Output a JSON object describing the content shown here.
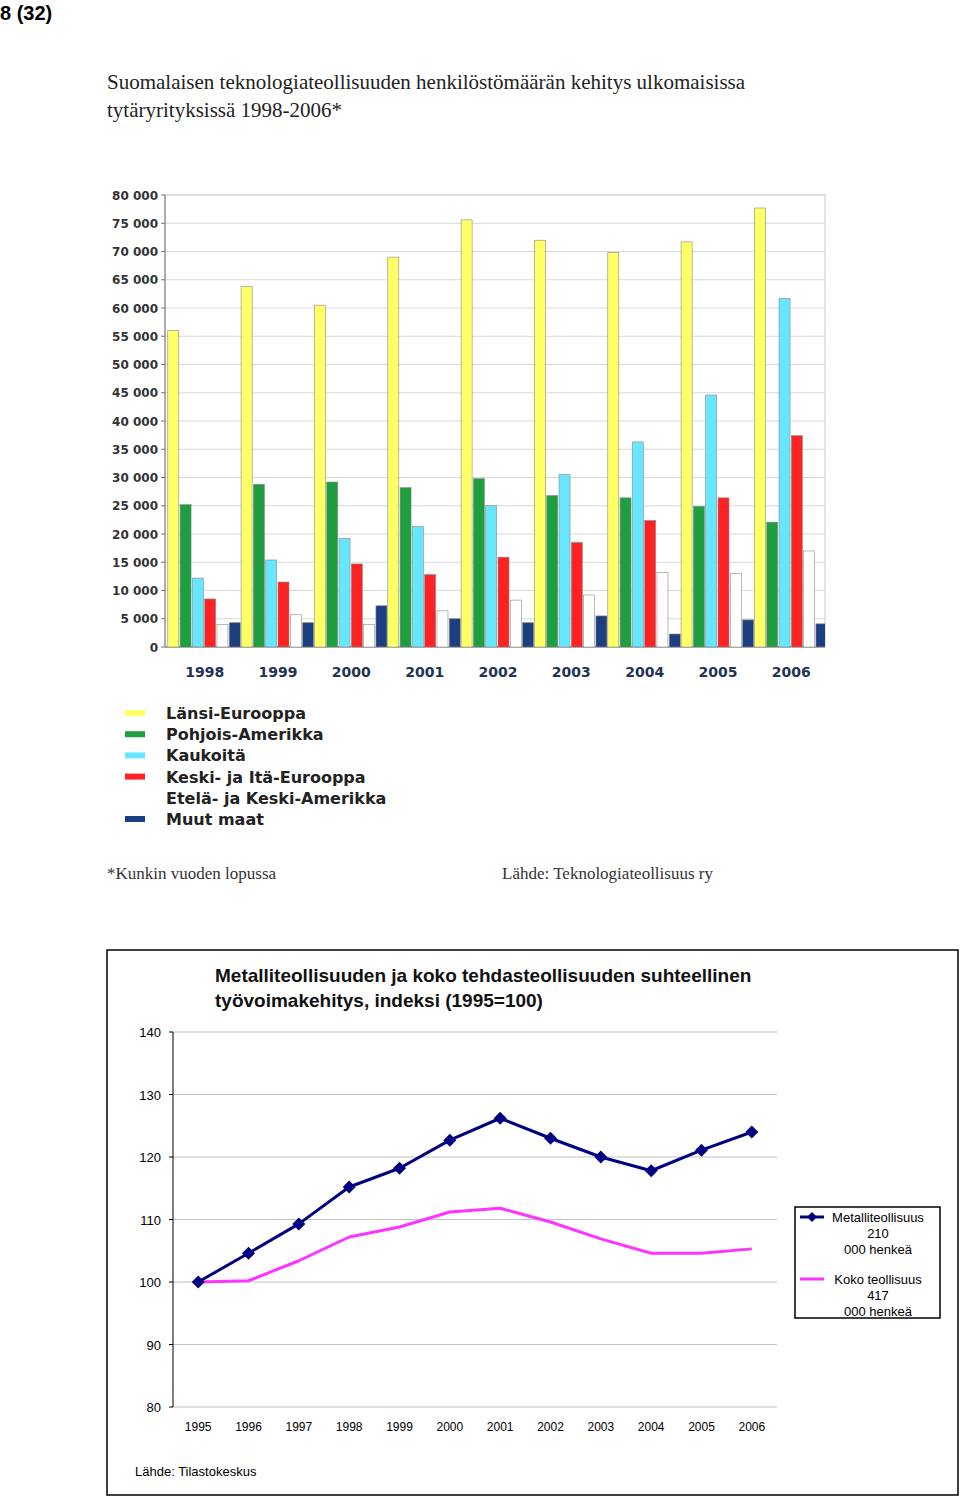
{
  "page": {
    "page_number": "8 (32)"
  },
  "chart_data": [
    {
      "type": "bar",
      "title": "Suomalaisen teknologiateollisuuden henkilöstömäärän kehitys ulkomaisissa tytäryrityksissä 1998-2006*",
      "note": "*Kunkin vuoden lopussa",
      "source": "Lähde: Teknologiateollisuus ry",
      "categories": [
        "1998",
        "1999",
        "2000",
        "2001",
        "2002",
        "2003",
        "2004",
        "2005",
        "2006"
      ],
      "series": [
        {
          "name": "Länsi-Eurooppa",
          "color": "#ffff66",
          "values": [
            56000,
            63800,
            60500,
            69000,
            75600,
            72000,
            69800,
            71700,
            77700
          ]
        },
        {
          "name": "Pohjois-Amerikka",
          "color": "#1e9e3e",
          "values": [
            25200,
            28800,
            29200,
            28200,
            29800,
            26800,
            26400,
            24900,
            22100
          ]
        },
        {
          "name": "Kaukoitä",
          "color": "#66e6ff",
          "values": [
            12200,
            15400,
            19200,
            21300,
            25000,
            30500,
            36300,
            44600,
            61700
          ]
        },
        {
          "name": "Keski- ja Itä-Eurooppa",
          "color": "#ff2222",
          "values": [
            8500,
            11500,
            14700,
            12800,
            15900,
            18500,
            22400,
            26400,
            37400
          ]
        },
        {
          "name": "Etelä- ja Keski-Amerikka",
          "color": "#ffffff",
          "values": [
            4000,
            5700,
            4000,
            6400,
            8300,
            9200,
            13200,
            13000,
            17000
          ]
        },
        {
          "name": "Muut maat",
          "color": "#1c3f80",
          "values": [
            4300,
            4300,
            7300,
            5000,
            4300,
            5500,
            2300,
            4800,
            4100
          ]
        }
      ],
      "ylim": [
        0,
        80000
      ],
      "yticks": [
        0,
        {
          "value": 5000,
          "label": "5 000"
        },
        {
          "value": 10000,
          "label": "10 000"
        },
        {
          "value": 15000,
          "label": "15 000"
        },
        {
          "value": 20000,
          "label": "20 000"
        },
        {
          "value": 25000,
          "label": "25 000"
        },
        {
          "value": 30000,
          "label": "30 000"
        },
        {
          "value": 35000,
          "label": "35 000"
        },
        {
          "value": 40000,
          "label": "40 000"
        },
        {
          "value": 45000,
          "label": "45 000"
        },
        {
          "value": 50000,
          "label": "50 000"
        },
        {
          "value": 55000,
          "label": "55 000"
        },
        {
          "value": 60000,
          "label": "60 000"
        },
        {
          "value": 65000,
          "label": "65 000"
        },
        {
          "value": 70000,
          "label": "70 000"
        },
        {
          "value": 75000,
          "label": "75 000"
        },
        {
          "value": 80000,
          "label": "80 000"
        }
      ],
      "grid": true,
      "legend": "bottom"
    },
    {
      "type": "line",
      "title": "Metalliteollisuuden ja koko tehdasteollisuuden suhteellinen työvoimakehitys, indeksi (1995=100)",
      "source": "Lähde: Tilastokeskus",
      "categories": [
        "1995",
        "1996",
        "1997",
        "1998",
        "1999",
        "2000",
        "2001",
        "2002",
        "2003",
        "2004",
        "2005",
        "2006"
      ],
      "series": [
        {
          "name": "Metalliteollisuus 210 000 henkeä",
          "color": "#000080",
          "marker": "diamond",
          "values": [
            100,
            104.6,
            109.3,
            115.2,
            118.2,
            122.7,
            126.2,
            123,
            120,
            117.8,
            121.1,
            124
          ]
        },
        {
          "name": "Koko teollisuus 417 000 henkeä",
          "color": "#ff33ff",
          "marker": "none",
          "values": [
            100,
            100.2,
            103.4,
            107.2,
            108.8,
            111.2,
            111.8,
            109.6,
            106.9,
            104.6,
            104.6,
            105.3
          ]
        }
      ],
      "ylim": [
        80,
        140
      ],
      "yticks": [
        80,
        90,
        100,
        110,
        120,
        130,
        140
      ],
      "grid": true,
      "legend": "right"
    }
  ]
}
